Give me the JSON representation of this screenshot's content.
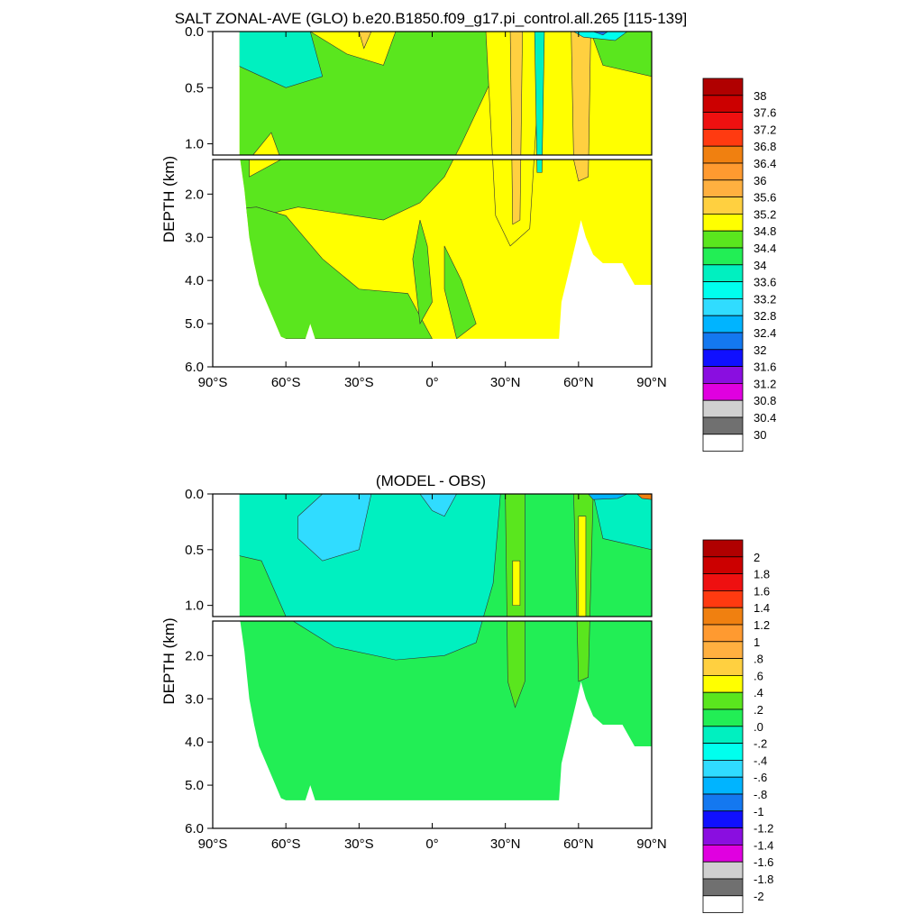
{
  "chart_data": [
    {
      "type": "heatmap",
      "title": "SALT ZONAL-AVE (GLO) b.e20.B1850.f09_g17.pi_control.all.265 [115-139]",
      "ylabel": "DEPTH (km)",
      "xlabel": "",
      "xlim": [
        -90,
        90
      ],
      "ylim": [
        6.0,
        0.0
      ],
      "x_ticks": [
        "90°S",
        "60°S",
        "30°S",
        "0°",
        "30°N",
        "60°N",
        "90°N"
      ],
      "y_ticks_upper": [
        "0.0",
        "0.5",
        "1.0"
      ],
      "y_ticks_lower": [
        "2.0",
        "3.0",
        "4.0",
        "5.0",
        "6.0"
      ],
      "colorbar_labels": [
        "38",
        "37.6",
        "37.2",
        "36.8",
        "36.4",
        "36",
        "35.6",
        "35.2",
        "34.8",
        "34.4",
        "34",
        "33.6",
        "33.2",
        "32.8",
        "32.4",
        "32",
        "31.6",
        "31.2",
        "30.8",
        "30.4",
        "30"
      ],
      "colorbar_colors": [
        "#b00000",
        "#cc0000",
        "#ee1010",
        "#ff3a10",
        "#f08010",
        "#ff9a30",
        "#ffb040",
        "#ffd040",
        "#ffff00",
        "#5ae61e",
        "#22ee55",
        "#00f0c0",
        "#00ffee",
        "#30dcff",
        "#00b4ff",
        "#1478f0",
        "#1010ff",
        "#8a0ee0",
        "#e000e0",
        "#d0d0d0",
        "#707070",
        "#ffffff"
      ],
      "region_notes": "Upper 1 km: mostly 34.4-35.2 (green/yellow); Atlantic 30N-60N up to 35.6-36; lower ocean: 34.4-35.2 with Southern Ocean below 34.8"
    },
    {
      "type": "heatmap",
      "title": "(MODEL - OBS)",
      "ylabel": "DEPTH (km)",
      "xlabel": "",
      "xlim": [
        -90,
        90
      ],
      "ylim": [
        6.0,
        0.0
      ],
      "x_ticks": [
        "90°S",
        "60°S",
        "30°S",
        "0°",
        "30°N",
        "60°N",
        "90°N"
      ],
      "y_ticks_upper": [
        "0.0",
        "0.5",
        "1.0"
      ],
      "y_ticks_lower": [
        "2.0",
        "3.0",
        "4.0",
        "5.0",
        "6.0"
      ],
      "colorbar_labels": [
        "2",
        "1.8",
        "1.6",
        "1.4",
        "1.2",
        "1",
        ".8",
        ".6",
        ".4",
        ".2",
        ".0",
        "-.2",
        "-.4",
        "-.6",
        "-.8",
        "-1",
        "-1.2",
        "-1.4",
        "-1.6",
        "-1.8",
        "-2"
      ],
      "colorbar_colors": [
        "#b00000",
        "#cc0000",
        "#ee1010",
        "#ff3a10",
        "#f08010",
        "#ff9a30",
        "#ffb040",
        "#ffd040",
        "#ffff00",
        "#5ae61e",
        "#22ee55",
        "#00f0c0",
        "#00ffee",
        "#30dcff",
        "#00b4ff",
        "#1478f0",
        "#1010ff",
        "#8a0ee0",
        "#e000e0",
        "#d0d0d0",
        "#707070",
        "#ffffff"
      ],
      "region_notes": "Mostly 0.0-0.2 (green); upper 1.5 km Southern/mid-latitudes -0.2 to -0.4; Atlantic 30N and 60N up to 0.4-0.6"
    }
  ]
}
